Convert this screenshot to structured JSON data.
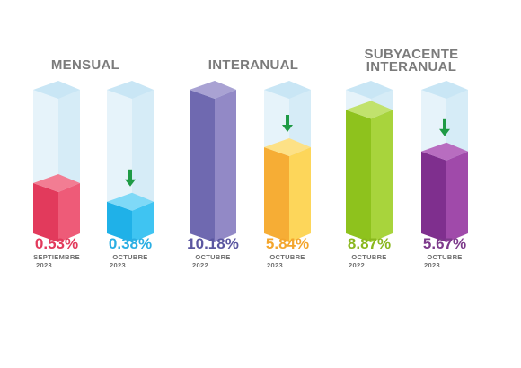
{
  "chart_data": {
    "type": "bar",
    "groups": [
      {
        "title": "MENSUAL",
        "title2": ""
      },
      {
        "title": "INTERANUAL",
        "title2": ""
      },
      {
        "title": "SUBYACENTE",
        "title2": "INTERANUAL"
      }
    ],
    "bars": [
      {
        "value_label": "0.53%",
        "period": "SEPTIEMBRE",
        "year": "2023",
        "fill": 0.35,
        "arrow": false,
        "front": "#e23a5c",
        "side": "#ee5b78",
        "top": "#f27d93",
        "text_color": "#e23a5c"
      },
      {
        "value_label": "0.38%",
        "period": "OCTUBRE",
        "year": "2023",
        "fill": 0.22,
        "arrow": true,
        "front": "#1fb1e8",
        "side": "#3fc4f2",
        "top": "#7fd9f7",
        "text_color": "#2aaee3"
      },
      {
        "value_label": "10.18%",
        "period": "OCTUBRE",
        "year": "2022",
        "fill": 1.0,
        "arrow": false,
        "front": "#6f69b0",
        "side": "#9289c6",
        "top": "#a9a2d3",
        "text_color": "#5b56a0"
      },
      {
        "value_label": "5.84%",
        "period": "OCTUBRE",
        "year": "2023",
        "fill": 0.6,
        "arrow": true,
        "front": "#f6ad35",
        "side": "#fdd65a",
        "top": "#fde186",
        "text_color": "#f3a52c"
      },
      {
        "value_label": "8.87%",
        "period": "OCTUBRE",
        "year": "2022",
        "fill": 0.86,
        "arrow": false,
        "front": "#8ec21d",
        "side": "#a8d43c",
        "top": "#c1e26d",
        "text_color": "#8ab71e"
      },
      {
        "value_label": "5.67%",
        "period": "OCTUBRE",
        "year": "2023",
        "fill": 0.57,
        "arrow": true,
        "front": "#7f2f8e",
        "side": "#a04aaa",
        "top": "#b86dc0",
        "text_color": "#7d3a8b"
      }
    ],
    "colors": {
      "glass_front": "#e6f3fa",
      "glass_side": "#d6ecf7",
      "glass_top": "#c9e6f5",
      "arrow": "#1f9a45"
    }
  }
}
